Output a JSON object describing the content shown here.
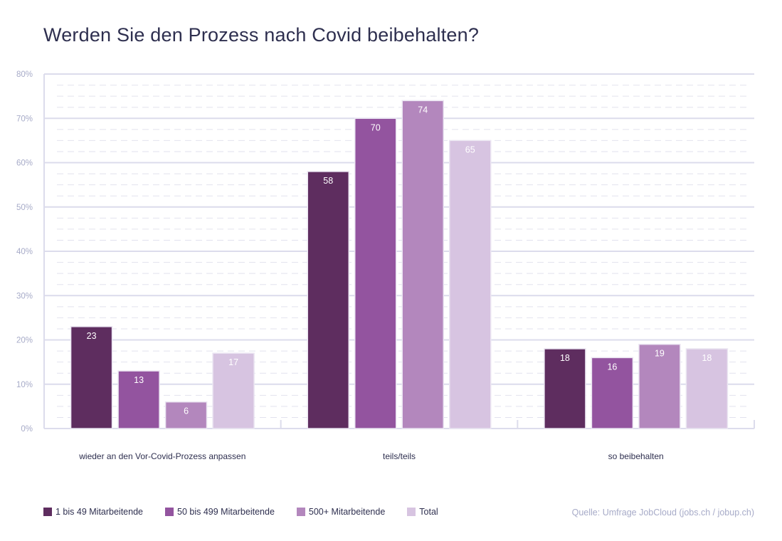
{
  "title": "Werden Sie den Prozess nach Covid beibehalten?",
  "source": "Quelle: Umfrage JobCloud (jobs.ch / jobup.ch)",
  "colors": {
    "gridline": "#dcdcec",
    "minor_gridline": "#e2e2ee",
    "axis_text": "#a7abc8",
    "category_text": "#2e2f4f",
    "series": [
      "#5e2d5f",
      "#93549f",
      "#b387bd",
      "#d7c4e1"
    ]
  },
  "chart_data": {
    "type": "bar",
    "categories": [
      "wieder an den Vor-Covid-Prozess anpassen",
      "teils/teils",
      "so beibehalten"
    ],
    "series": [
      {
        "name": "1 bis 49 Mitarbeitende",
        "values": [
          23,
          58,
          18
        ]
      },
      {
        "name": "50 bis 499 Mitarbeitende",
        "values": [
          13,
          70,
          16
        ]
      },
      {
        "name": "500+ Mitarbeitende",
        "values": [
          6,
          74,
          19
        ]
      },
      {
        "name": "Total",
        "values": [
          17,
          65,
          18
        ]
      }
    ],
    "data_labels": [
      [
        "23",
        "58",
        "18"
      ],
      [
        "13",
        "70",
        "16"
      ],
      [
        "6",
        "74",
        "19"
      ],
      [
        "17",
        "65",
        "18"
      ]
    ],
    "title": "Werden Sie den Prozess nach Covid beibehalten?",
    "ylim": [
      0,
      80
    ],
    "yticks": [
      "0%",
      "10%",
      "20%",
      "30%",
      "40%",
      "50%",
      "60%",
      "70%",
      "80%"
    ],
    "grid": true,
    "legend_position": "bottom-left"
  }
}
